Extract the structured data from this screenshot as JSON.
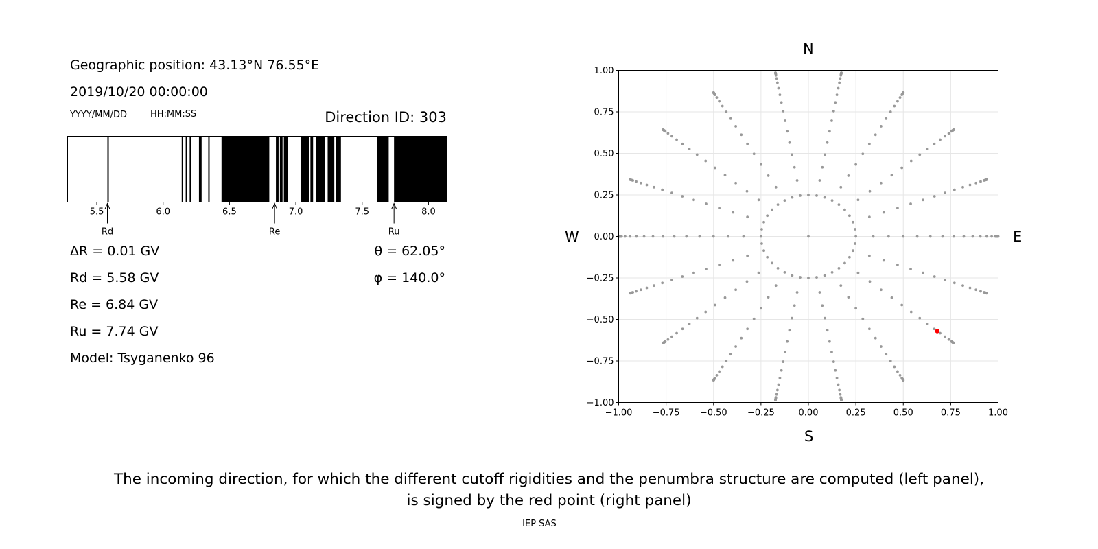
{
  "left_panel": {
    "geo_line": "Geographic position: 43.13°N 76.55°E",
    "datetime": "2019/10/20 00:00:00",
    "date_format": "YYYY/MM/DD",
    "time_format": "HH:MM:SS",
    "direction_id": "Direction ID: 303",
    "delta_r": "ΔR = 0.01 GV",
    "rd": "Rd = 5.58 GV",
    "re": "Re = 6.84 GV",
    "ru": "Ru = 7.74 GV",
    "model": "Model: Tsyganenko 96",
    "theta": "θ = 62.05°",
    "phi": "φ = 140.0°"
  },
  "right_panel": {
    "north": "N",
    "south": "S",
    "west": "W",
    "east": "E"
  },
  "caption": {
    "line1": "The incoming direction, for which the different cutoff rigidities and the penumbra structure are computed (left panel),",
    "line2": "is signed by the red point (right panel)",
    "credit": "IEP SAS"
  },
  "chart_data": [
    {
      "type": "bar",
      "name": "penumbra",
      "xlim": [
        5.28,
        8.14
      ],
      "xticks": [
        5.5,
        6.0,
        6.5,
        7.0,
        7.5,
        8.0
      ],
      "xtick_labels": [
        "5.5",
        "6.0",
        "6.5",
        "7.0",
        "7.5",
        "8.0"
      ],
      "forbidden_intervals": [
        [
          5.58,
          5.59
        ],
        [
          6.14,
          6.15
        ],
        [
          6.17,
          6.18
        ],
        [
          6.2,
          6.21
        ],
        [
          6.27,
          6.29
        ],
        [
          6.34,
          6.35
        ],
        [
          6.44,
          6.8
        ],
        [
          6.85,
          6.87
        ],
        [
          6.88,
          6.9
        ],
        [
          6.91,
          6.94
        ],
        [
          7.04,
          7.1
        ],
        [
          7.11,
          7.13
        ],
        [
          7.15,
          7.22
        ],
        [
          7.24,
          7.29
        ],
        [
          7.3,
          7.34
        ],
        [
          7.61,
          7.7
        ],
        [
          7.74,
          8.14
        ]
      ],
      "markers": [
        {
          "label": "Rd",
          "value": 5.58
        },
        {
          "label": "Re",
          "value": 6.84
        },
        {
          "label": "Ru",
          "value": 7.74
        }
      ]
    },
    {
      "type": "scatter",
      "name": "directions",
      "xlim": [
        -1.0,
        1.0
      ],
      "ylim": [
        -1.0,
        1.0
      ],
      "xticks": [
        -1.0,
        -0.75,
        -0.5,
        -0.25,
        0.0,
        0.25,
        0.5,
        0.75,
        1.0
      ],
      "xtick_labels": [
        "−1.00",
        "−0.75",
        "−0.50",
        "−0.25",
        "0.00",
        "0.25",
        "0.50",
        "0.75",
        "1.00"
      ],
      "yticks": [
        -1.0,
        -0.75,
        -0.5,
        -0.25,
        0.0,
        0.25,
        0.5,
        0.75,
        1.0
      ],
      "ytick_labels": [
        "−1.00",
        "−0.75",
        "−0.50",
        "−0.25",
        "0.00",
        "0.25",
        "0.50",
        "0.75",
        "1.00"
      ],
      "grid": true,
      "grid_points": {
        "center": [
          0.0,
          0.0
        ],
        "inner_ring": {
          "radius": 0.25,
          "count": 36
        },
        "azimuth_step_deg": 20,
        "zenith_step_deg": 5,
        "zenith_min_deg": 20,
        "zenith_max_deg": 80
      },
      "point_color": "#999999",
      "highlight": {
        "x": 0.679,
        "y": -0.57,
        "color": "#ff0000"
      }
    }
  ]
}
